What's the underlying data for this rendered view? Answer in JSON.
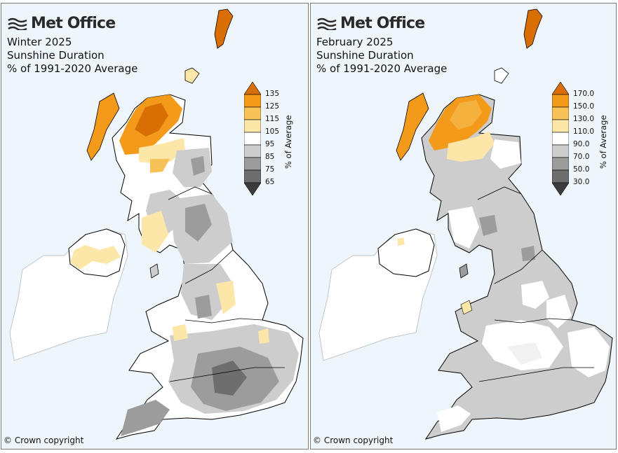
{
  "logo_text": "Met Office",
  "copyright": "© Crown copyright",
  "panels": [
    {
      "title_lines": [
        "Winter 2025",
        "Sunshine Duration",
        "% of 1991-2020 Average"
      ],
      "legend": {
        "axis_label": "% of Average",
        "ticks": [
          "135",
          "125",
          "115",
          "105",
          "95",
          "85",
          "75",
          "65"
        ],
        "colors": [
          "#d96f04",
          "#f39a1b",
          "#f7c257",
          "#fde7a8",
          "#ffffff",
          "#cdcdcd",
          "#9c9c9c",
          "#6e6e6e",
          "#3c3c3c"
        ]
      }
    },
    {
      "title_lines": [
        "February 2025",
        "Sunshine Duration",
        "% of 1991-2020 Average"
      ],
      "legend": {
        "axis_label": "% of Average",
        "ticks": [
          "170.0",
          "150.0",
          "130.0",
          "110.0",
          "90.0",
          "70.0",
          "50.0",
          "30.0"
        ],
        "colors": [
          "#d96f04",
          "#f39a1b",
          "#f7c257",
          "#fde7a8",
          "#ffffff",
          "#cdcdcd",
          "#9c9c9c",
          "#6e6e6e",
          "#3c3c3c"
        ]
      }
    }
  ]
}
